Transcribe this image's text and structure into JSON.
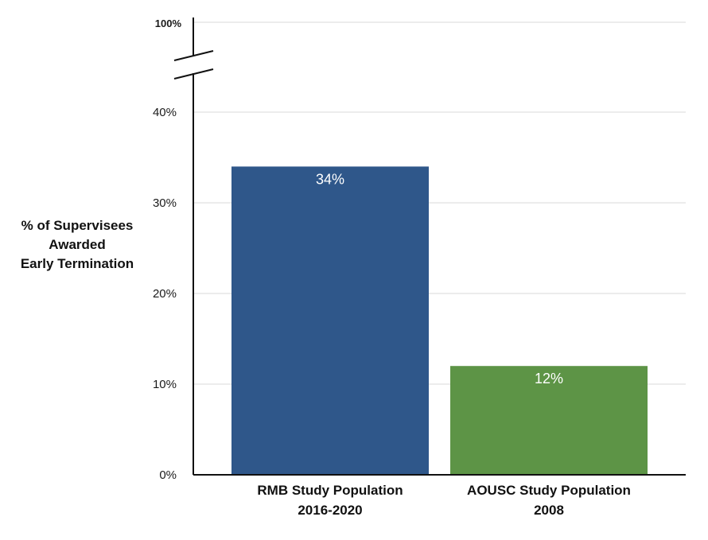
{
  "chart_data": {
    "type": "bar",
    "categories": [
      [
        "RMB Study Population",
        "2016-2020"
      ],
      [
        "AOUSC Study Population",
        "2008"
      ]
    ],
    "values": [
      34,
      12
    ],
    "data_labels": [
      "34%",
      "12%"
    ],
    "bar_colors": [
      "#2f578a",
      "#5d9446"
    ],
    "ylabel_lines": [
      "% of Supervisees",
      "Awarded",
      "Early Termination"
    ],
    "y_ticks": [
      0,
      10,
      20,
      30,
      40
    ],
    "y_tick_labels": [
      "0%",
      "10%",
      "20%",
      "30%",
      "40%"
    ],
    "y_break_top_label": "100%",
    "ylim": [
      0,
      40
    ],
    "axis_break": true,
    "grid": true
  }
}
